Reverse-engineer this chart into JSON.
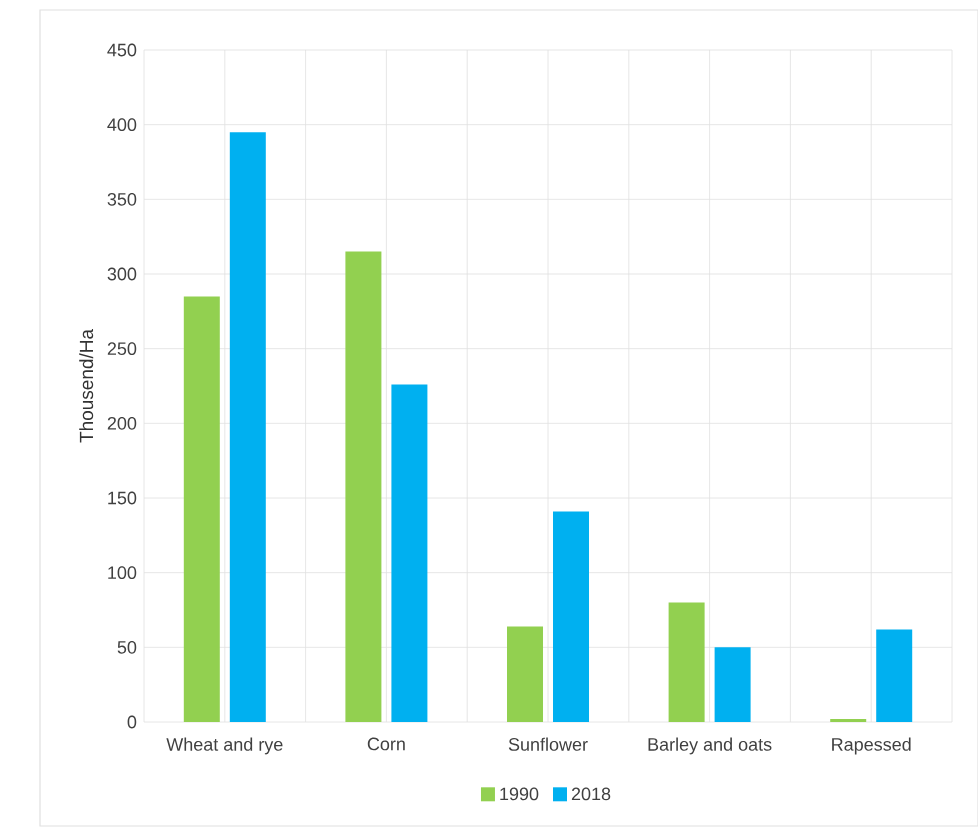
{
  "chart_data": {
    "type": "bar",
    "ylabel": "Thousend/Ha",
    "categories": [
      "Wheat and rye",
      "Corn",
      "Sunflower",
      "Barley and oats",
      "Rapessed"
    ],
    "series": [
      {
        "name": "1990",
        "color": "#92d050",
        "values": [
          285,
          315,
          64,
          80,
          2
        ]
      },
      {
        "name": "2018",
        "color": "#00b0f0",
        "values": [
          395,
          226,
          141,
          50,
          62
        ]
      }
    ],
    "ylim": [
      0,
      450
    ],
    "yticks": [
      0,
      50,
      100,
      150,
      200,
      250,
      300,
      350,
      400,
      450
    ],
    "grid": true,
    "legend": "bottom"
  }
}
